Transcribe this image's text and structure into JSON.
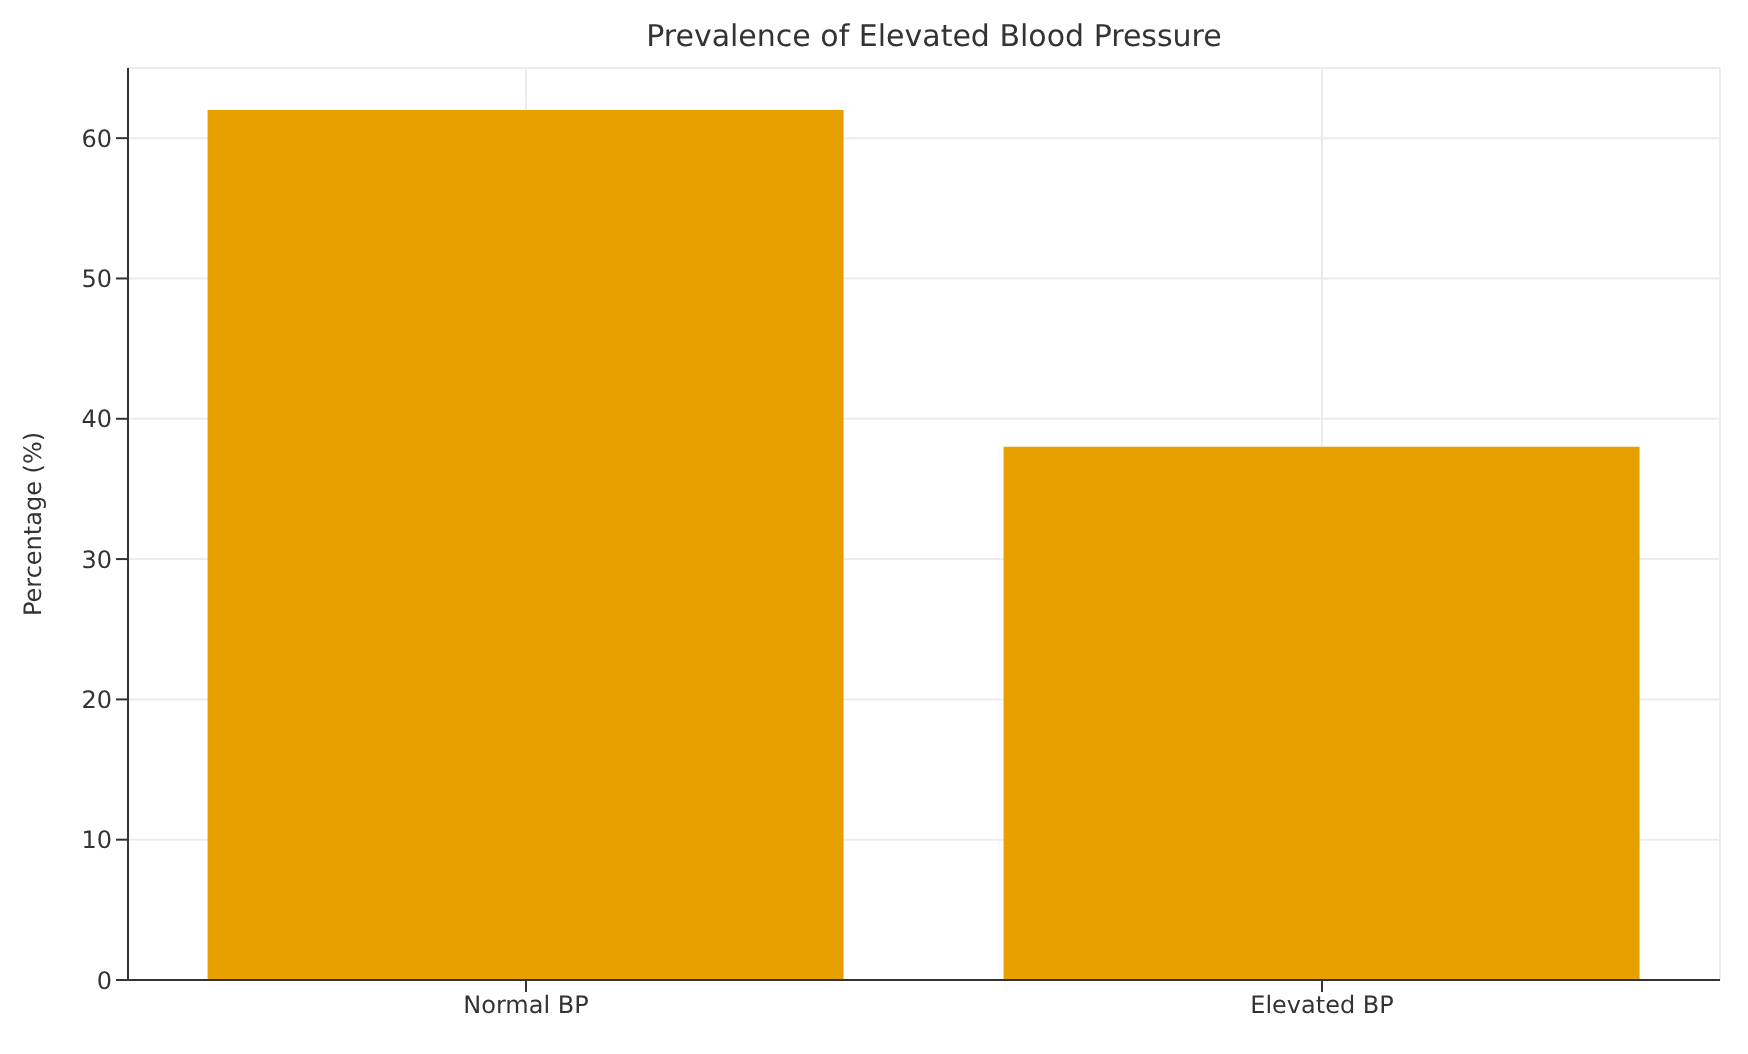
{
  "chart_data": {
    "type": "bar",
    "title": "Prevalence of Elevated Blood Pressure",
    "ylabel": "Percentage (%)",
    "categories": [
      "Normal BP",
      "Elevated BP"
    ],
    "values": [
      62,
      38
    ],
    "color": "#e6a100",
    "ylim": [
      0,
      65
    ],
    "yticks": [
      0,
      10,
      20,
      30,
      40,
      50,
      60
    ],
    "grid": true
  }
}
